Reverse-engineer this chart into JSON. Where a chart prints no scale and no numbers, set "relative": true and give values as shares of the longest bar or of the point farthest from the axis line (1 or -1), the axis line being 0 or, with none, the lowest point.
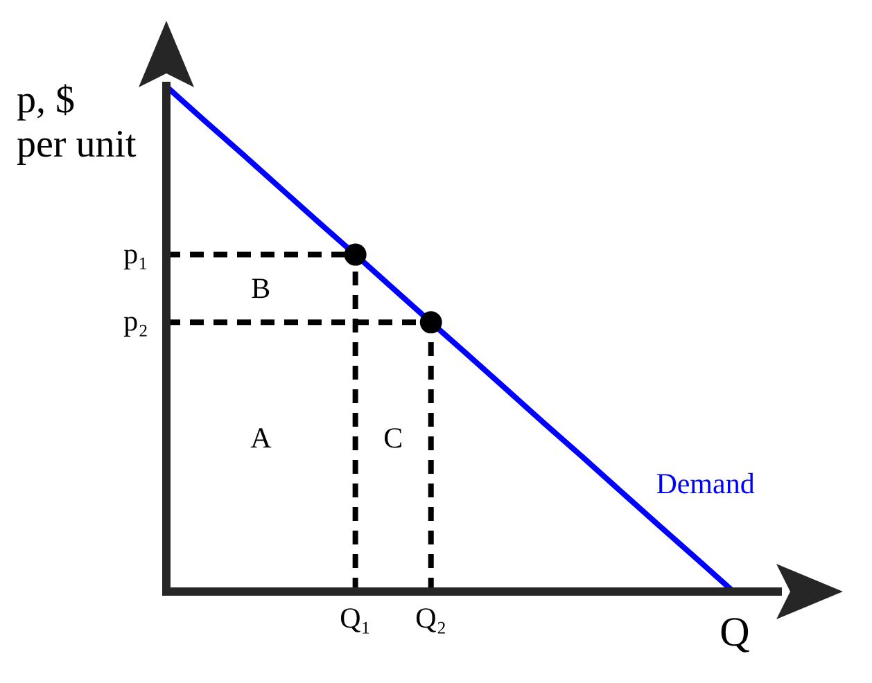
{
  "chart_data": {
    "type": "line",
    "relative": true,
    "xlabel": "Q",
    "ylabel": "p, $\nper unit",
    "categories": [
      null,
      null,
      null,
      null,
      null,
      "Q₁",
      null,
      "Q₂",
      null,
      null,
      null,
      null,
      null,
      null,
      null,
      null
    ],
    "series": [
      {
        "name": "Demand",
        "values": [
          1,
          0.933,
          0.867,
          0.8,
          0.733,
          0.667,
          0.6,
          0.533,
          0.467,
          0.4,
          0.333,
          0.267,
          0.2,
          0.133,
          0.067,
          0
        ],
        "color": "#0000ff",
        "line_style": "solid"
      },
      {
        "type": "lollipop",
        "values": [
          null,
          null,
          null,
          null,
          null,
          0.667,
          null,
          0.533,
          null,
          null,
          null,
          null,
          null,
          null,
          null,
          null
        ],
        "color": "#000000",
        "marker": "circle",
        "line_style": "dashed"
      }
    ],
    "ref_lines": [
      {
        "axis": "y",
        "value": 0.667,
        "label": "p₁",
        "color": "#000000",
        "line_style": "dashed"
      },
      {
        "axis": "y",
        "value": 0.533,
        "label": "p₂",
        "color": "#000000",
        "line_style": "dashed"
      }
    ],
    "annotations": [
      "B",
      "A",
      "C"
    ]
  }
}
